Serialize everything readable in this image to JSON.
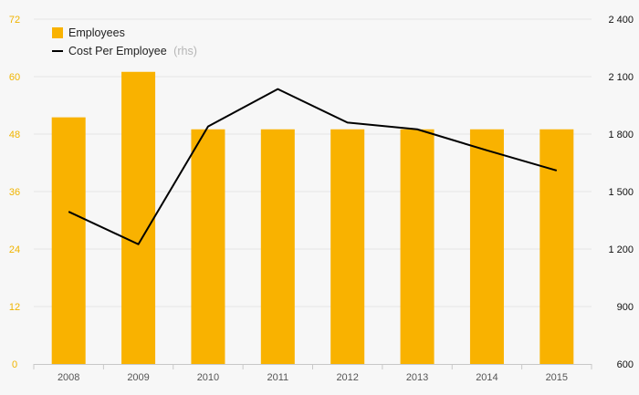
{
  "chart_data": {
    "type": "bar+line",
    "categories": [
      "2008",
      "2009",
      "2010",
      "2011",
      "2012",
      "2013",
      "2014",
      "2015"
    ],
    "series": [
      {
        "name": "Employees",
        "type": "bar",
        "axis": "left",
        "color": "#f9b200",
        "values": [
          51.5,
          61,
          49,
          49,
          49,
          49,
          49,
          49
        ]
      },
      {
        "name": "Cost Per Employee",
        "note": "(rhs)",
        "type": "line",
        "axis": "right",
        "color": "#000000",
        "values": [
          1395,
          1225,
          1840,
          2035,
          1860,
          1825,
          1715,
          1610
        ]
      }
    ],
    "y_left": {
      "min": 0,
      "max": 72,
      "ticks": [
        "0",
        "12",
        "24",
        "36",
        "48",
        "60",
        "72"
      ],
      "color": "#f0b400"
    },
    "y_right": {
      "min": 600,
      "max": 2400,
      "ticks": [
        "600",
        "900",
        "1 200",
        "1 500",
        "1 800",
        "2 100",
        "2 400"
      ]
    },
    "grid": true,
    "legend_position": "top-left"
  }
}
